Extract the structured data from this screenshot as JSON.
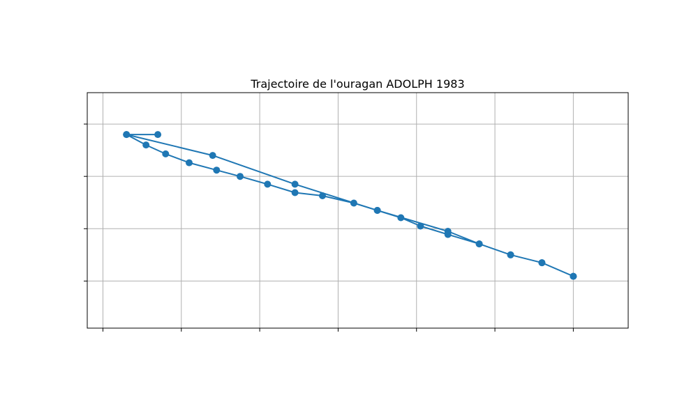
{
  "chart_data": {
    "type": "line",
    "title": "Trajectoire de l'ouragan ADOLPH 1983",
    "xlabel": "",
    "ylabel": "",
    "xlim": [
      -110.4,
      -103.5
    ],
    "ylim": [
      15.9,
      20.4
    ],
    "xticks": [
      -110.2,
      -109.2,
      -108.2,
      -107.2,
      -106.2,
      -105.2,
      -104.2
    ],
    "yticks": [
      16.8,
      17.8,
      18.8,
      19.8
    ],
    "grid": true,
    "legend": "none",
    "color": "#1f77b4",
    "series": [
      {
        "x": [
          -104.2,
          -104.6,
          -105.0,
          -105.4,
          -105.8,
          -106.15,
          -106.4,
          -106.7,
          -107.0,
          -107.4,
          -107.75,
          -108.1,
          -108.45,
          -108.75,
          -109.1,
          -109.4,
          -109.65,
          -109.9,
          -109.5,
          -109.9,
          -108.8,
          -107.75,
          -106.7,
          -105.8,
          -105.4,
          -105.0,
          -104.6,
          -104.2
        ],
        "y": [
          16.89,
          17.15,
          17.3,
          17.51,
          17.69,
          17.85,
          18.01,
          18.15,
          18.29,
          18.43,
          18.49,
          18.65,
          18.8,
          18.92,
          19.06,
          19.23,
          19.4,
          19.6,
          19.6,
          19.6,
          19.2,
          18.65,
          18.15,
          17.75,
          17.51,
          17.3,
          17.15,
          16.89
        ]
      }
    ]
  }
}
